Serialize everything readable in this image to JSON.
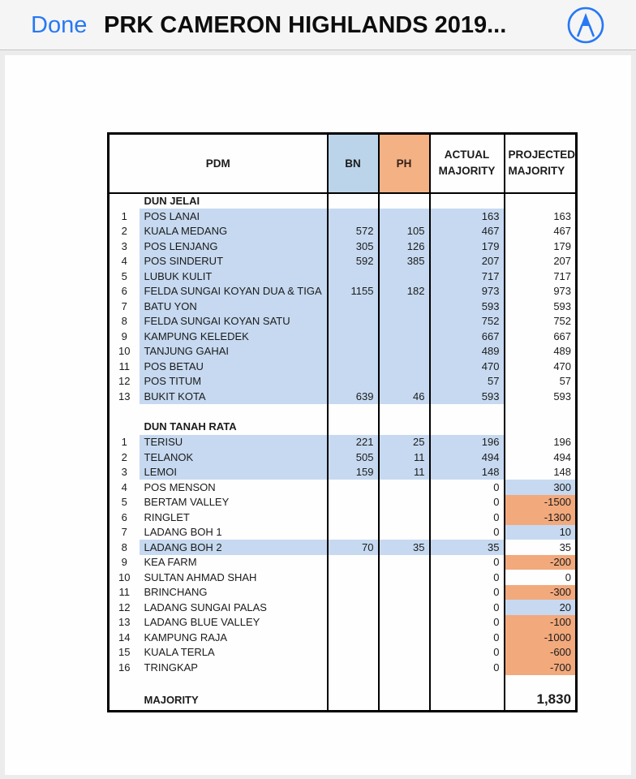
{
  "navbar": {
    "done_label": "Done",
    "title": "PRK CAMERON HIGHLANDS 2019...",
    "compass_icon": "drafting-compass-icon",
    "accent_color": "#2778f4"
  },
  "colors": {
    "bn_header_blue": "#bcd4ea",
    "ph_header_orange": "#f4b183",
    "row_highlight_blue": "#c6d9f0",
    "projected_positive_blue": "#c6d9f0",
    "projected_negative_orange": "#f2a97c",
    "table_border": "#000000"
  },
  "table": {
    "headers": {
      "pdm": "PDM",
      "bn": "BN",
      "ph": "PH",
      "actual_line1": "ACTUAL",
      "actual_line2": "MAJORITY",
      "projected_line1": "PROJECTED",
      "projected_line2": "MAJORITY"
    },
    "sections": [
      {
        "title": "DUN JELAI",
        "rows": [
          {
            "num": "1",
            "name": "POS LANAI",
            "bn": "",
            "ph": "",
            "actual": "163",
            "projected": "163",
            "highlight": true,
            "proj_bg": ""
          },
          {
            "num": "2",
            "name": "KUALA MEDANG",
            "bn": "572",
            "ph": "105",
            "actual": "467",
            "projected": "467",
            "highlight": true,
            "proj_bg": ""
          },
          {
            "num": "3",
            "name": "POS LENJANG",
            "bn": "305",
            "ph": "126",
            "actual": "179",
            "projected": "179",
            "highlight": true,
            "proj_bg": ""
          },
          {
            "num": "4",
            "name": "POS SINDERUT",
            "bn": "592",
            "ph": "385",
            "actual": "207",
            "projected": "207",
            "highlight": true,
            "proj_bg": ""
          },
          {
            "num": "5",
            "name": "LUBUK KULIT",
            "bn": "",
            "ph": "",
            "actual": "717",
            "projected": "717",
            "highlight": true,
            "proj_bg": ""
          },
          {
            "num": "6",
            "name": "FELDA SUNGAI KOYAN DUA & TIGA",
            "bn": "1155",
            "ph": "182",
            "actual": "973",
            "projected": "973",
            "highlight": true,
            "proj_bg": ""
          },
          {
            "num": "7",
            "name": "BATU YON",
            "bn": "",
            "ph": "",
            "actual": "593",
            "projected": "593",
            "highlight": true,
            "proj_bg": ""
          },
          {
            "num": "8",
            "name": "FELDA SUNGAI KOYAN SATU",
            "bn": "",
            "ph": "",
            "actual": "752",
            "projected": "752",
            "highlight": true,
            "proj_bg": ""
          },
          {
            "num": "9",
            "name": "KAMPUNG KELEDEK",
            "bn": "",
            "ph": "",
            "actual": "667",
            "projected": "667",
            "highlight": true,
            "proj_bg": ""
          },
          {
            "num": "10",
            "name": "TANJUNG GAHAI",
            "bn": "",
            "ph": "",
            "actual": "489",
            "projected": "489",
            "highlight": true,
            "proj_bg": ""
          },
          {
            "num": "11",
            "name": "POS BETAU",
            "bn": "",
            "ph": "",
            "actual": "470",
            "projected": "470",
            "highlight": true,
            "proj_bg": ""
          },
          {
            "num": "12",
            "name": "POS TITUM",
            "bn": "",
            "ph": "",
            "actual": "57",
            "projected": "57",
            "highlight": true,
            "proj_bg": ""
          },
          {
            "num": "13",
            "name": "BUKIT KOTA",
            "bn": "639",
            "ph": "46",
            "actual": "593",
            "projected": "593",
            "highlight": true,
            "proj_bg": ""
          }
        ]
      },
      {
        "title": "DUN TANAH RATA",
        "rows": [
          {
            "num": "1",
            "name": "TERISU",
            "bn": "221",
            "ph": "25",
            "actual": "196",
            "projected": "196",
            "highlight": true,
            "proj_bg": ""
          },
          {
            "num": "2",
            "name": "TELANOK",
            "bn": "505",
            "ph": "11",
            "actual": "494",
            "projected": "494",
            "highlight": true,
            "proj_bg": ""
          },
          {
            "num": "3",
            "name": "LEMOI",
            "bn": "159",
            "ph": "11",
            "actual": "148",
            "projected": "148",
            "highlight": true,
            "proj_bg": ""
          },
          {
            "num": "4",
            "name": "POS MENSON",
            "bn": "",
            "ph": "",
            "actual": "0",
            "projected": "300",
            "highlight": false,
            "proj_bg": "blue"
          },
          {
            "num": "5",
            "name": "BERTAM VALLEY",
            "bn": "",
            "ph": "",
            "actual": "0",
            "projected": "-1500",
            "highlight": false,
            "proj_bg": "orange"
          },
          {
            "num": "6",
            "name": "RINGLET",
            "bn": "",
            "ph": "",
            "actual": "0",
            "projected": "-1300",
            "highlight": false,
            "proj_bg": "orange"
          },
          {
            "num": "7",
            "name": "LADANG BOH 1",
            "bn": "",
            "ph": "",
            "actual": "0",
            "projected": "10",
            "highlight": false,
            "proj_bg": "blue"
          },
          {
            "num": "8",
            "name": "LADANG BOH 2",
            "bn": "70",
            "ph": "35",
            "actual": "35",
            "projected": "35",
            "highlight": true,
            "proj_bg": ""
          },
          {
            "num": "9",
            "name": "KEA FARM",
            "bn": "",
            "ph": "",
            "actual": "0",
            "projected": "-200",
            "highlight": false,
            "proj_bg": "orange"
          },
          {
            "num": "10",
            "name": "SULTAN AHMAD SHAH",
            "bn": "",
            "ph": "",
            "actual": "0",
            "projected": "0",
            "highlight": false,
            "proj_bg": ""
          },
          {
            "num": "11",
            "name": "BRINCHANG",
            "bn": "",
            "ph": "",
            "actual": "0",
            "projected": "-300",
            "highlight": false,
            "proj_bg": "orange"
          },
          {
            "num": "12",
            "name": "LADANG SUNGAI PALAS",
            "bn": "",
            "ph": "",
            "actual": "0",
            "projected": "20",
            "highlight": false,
            "proj_bg": "blue"
          },
          {
            "num": "13",
            "name": "LADANG BLUE VALLEY",
            "bn": "",
            "ph": "",
            "actual": "0",
            "projected": "-100",
            "highlight": false,
            "proj_bg": "orange"
          },
          {
            "num": "14",
            "name": "KAMPUNG RAJA",
            "bn": "",
            "ph": "",
            "actual": "0",
            "projected": "-1000",
            "highlight": false,
            "proj_bg": "orange"
          },
          {
            "num": "15",
            "name": "KUALA TERLA",
            "bn": "",
            "ph": "",
            "actual": "0",
            "projected": "-600",
            "highlight": false,
            "proj_bg": "orange"
          },
          {
            "num": "16",
            "name": "TRINGKAP",
            "bn": "",
            "ph": "",
            "actual": "0",
            "projected": "-700",
            "highlight": false,
            "proj_bg": "orange"
          }
        ]
      }
    ],
    "majority_label": "MAJORITY",
    "majority_value": "1,830"
  }
}
